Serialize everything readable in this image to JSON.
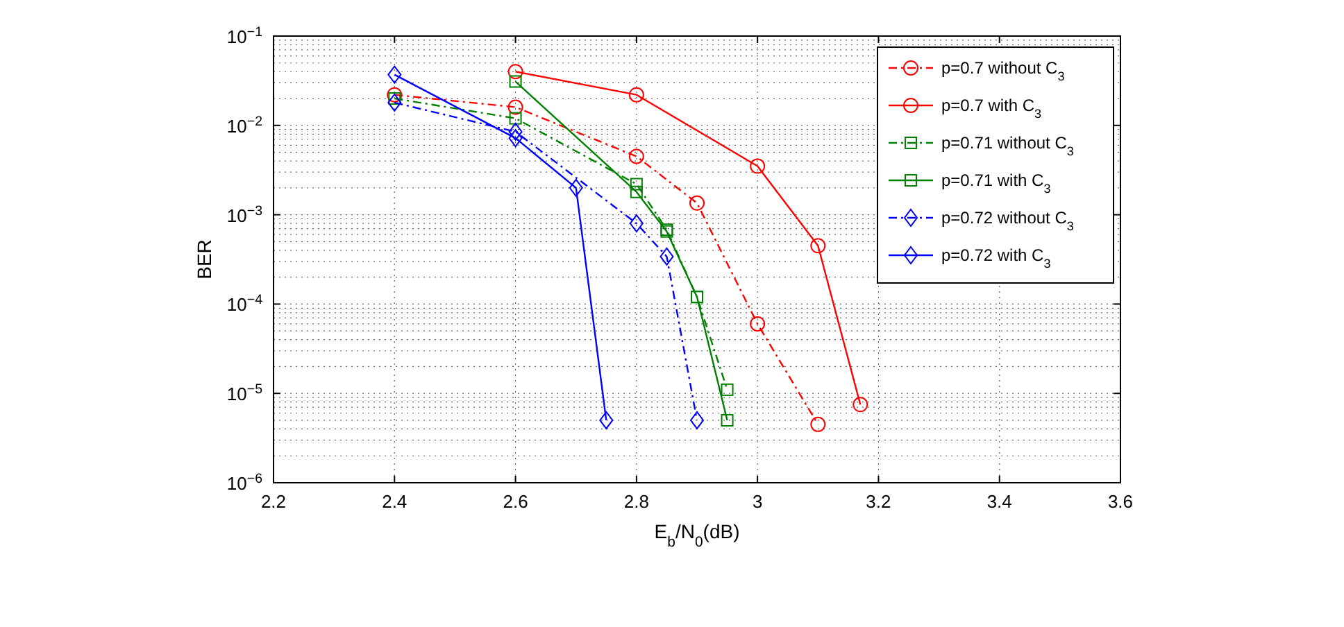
{
  "chart_data": {
    "type": "line",
    "xlabel": "E$_{b}$/N$_{0}$(dB)",
    "ylabel": "BER",
    "log": "y",
    "grid": true,
    "legend": "top right",
    "xlim": [
      2.2,
      3.6
    ],
    "xticks": [
      2.2,
      2.4,
      2.6,
      2.8,
      3,
      3.2,
      3.4,
      3.6
    ],
    "ylim": [
      1e-06,
      0.1
    ],
    "yticks": [
      {
        "value": 1e-06,
        "label": "10$^{−6}$"
      },
      {
        "value": 1e-05,
        "label": "10$^{−5}$"
      },
      {
        "value": 0.0001,
        "label": "10$^{−4}$"
      },
      {
        "value": 0.001,
        "label": "10$^{−3}$"
      },
      {
        "value": 0.01,
        "label": "10$^{−2}$"
      },
      {
        "value": 0.1,
        "label": "10$^{−1}$"
      }
    ],
    "series": [
      {
        "name": "p=0.7 without C$_{3}$",
        "color": "#ff0000",
        "marker": "circle",
        "line_style": "dashed",
        "x": [
          2.4,
          2.6,
          2.8,
          2.9,
          3.0,
          3.1
        ],
        "values": [
          0.022,
          0.016,
          0.0045,
          0.00135,
          6e-05,
          4.5e-06
        ]
      },
      {
        "name": "p=0.7 with C$_{3}$",
        "color": "#ff0000",
        "marker": "circle",
        "line_style": "solid",
        "x": [
          2.6,
          2.8,
          3.0,
          3.1,
          3.17
        ],
        "values": [
          0.04,
          0.022,
          0.0035,
          0.00045,
          7.5e-06
        ]
      },
      {
        "name": "p=0.71 without C$_{3}$",
        "color": "#008000",
        "marker": "square",
        "line_style": "dashed",
        "x": [
          2.4,
          2.6,
          2.8,
          2.85,
          2.9,
          2.95
        ],
        "values": [
          0.02,
          0.012,
          0.0022,
          0.00068,
          0.00012,
          1.1e-05
        ]
      },
      {
        "name": "p=0.71 with C$_{3}$",
        "color": "#008000",
        "marker": "square",
        "line_style": "solid",
        "x": [
          2.6,
          2.8,
          2.85,
          2.9,
          2.95
        ],
        "values": [
          0.031,
          0.0018,
          0.00065,
          0.00012,
          5e-06
        ]
      },
      {
        "name": "p=0.72 without C$_{3}$",
        "color": "#0000ff",
        "marker": "diamond",
        "line_style": "dashed",
        "x": [
          2.4,
          2.6,
          2.8,
          2.85,
          2.9
        ],
        "values": [
          0.018,
          0.0085,
          0.0008,
          0.00034,
          5e-06
        ]
      },
      {
        "name": "p=0.72 with C$_{3}$",
        "color": "#0000ff",
        "marker": "diamond",
        "line_style": "solid",
        "x": [
          2.4,
          2.6,
          2.7,
          2.75
        ],
        "values": [
          0.037,
          0.0072,
          0.002,
          5e-06
        ]
      }
    ]
  }
}
